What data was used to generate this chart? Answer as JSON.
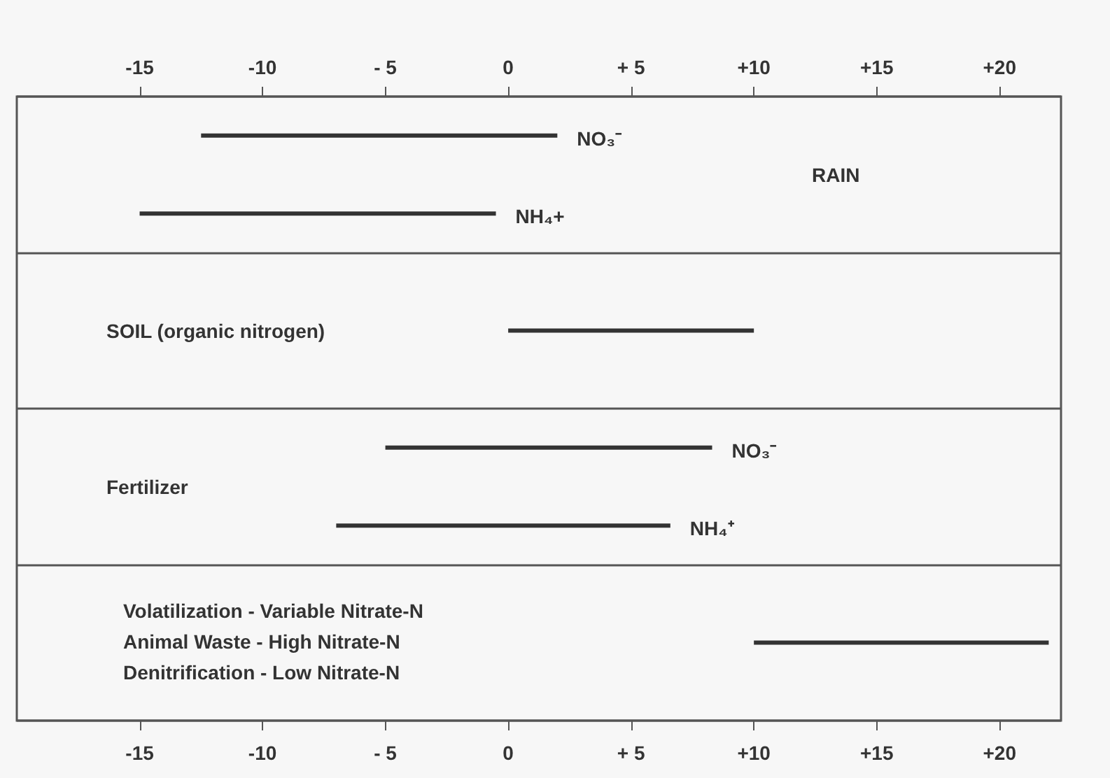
{
  "chart_data": {
    "type": "bar",
    "orientation": "horizontal",
    "categories": [
      "RAIN",
      "SOIL (organic nitrogen)",
      "Fertilizer",
      null
    ],
    "series": [
      {
        "color": "#333333",
        "base": [
          -12.5,
          0,
          -5,
          10
        ],
        "values": [
          14.5,
          10,
          13.3,
          12
        ],
        "value_labels": [
          "NO₃⁻",
          null,
          "NO₃⁻",
          null
        ]
      },
      {
        "color": "#333333",
        "base": [
          -15,
          null,
          -7,
          null
        ],
        "values": [
          14.5,
          null,
          13.6,
          null
        ],
        "value_labels": [
          "NH₄+",
          null,
          "NH₄⁺",
          null
        ]
      }
    ],
    "annotations": [
      "Volatilization - Variable Nitrate-N",
      "Animal Waste - High Nitrate-N",
      "Denitrification - Low Nitrate-N"
    ],
    "xlim": [
      -20,
      22.5
    ],
    "xticks": [
      -15,
      -10,
      {
        "value": -5,
        "label": "- 5"
      },
      0,
      {
        "value": 5,
        "label": "+ 5"
      },
      {
        "value": 10,
        "label": "+10"
      },
      {
        "value": 15,
        "label": "+15"
      },
      {
        "value": 20,
        "label": "+20"
      }
    ],
    "x2lim": [
      -20,
      22.5
    ],
    "x2ticks": [
      -15,
      -10,
      {
        "value": -5,
        "label": "- 5"
      },
      0,
      {
        "value": 5,
        "label": "+ 5"
      },
      {
        "value": 10,
        "label": "+10"
      },
      {
        "value": 15,
        "label": "+15"
      },
      {
        "value": 20,
        "label": "+20"
      }
    ],
    "grid": "y"
  }
}
